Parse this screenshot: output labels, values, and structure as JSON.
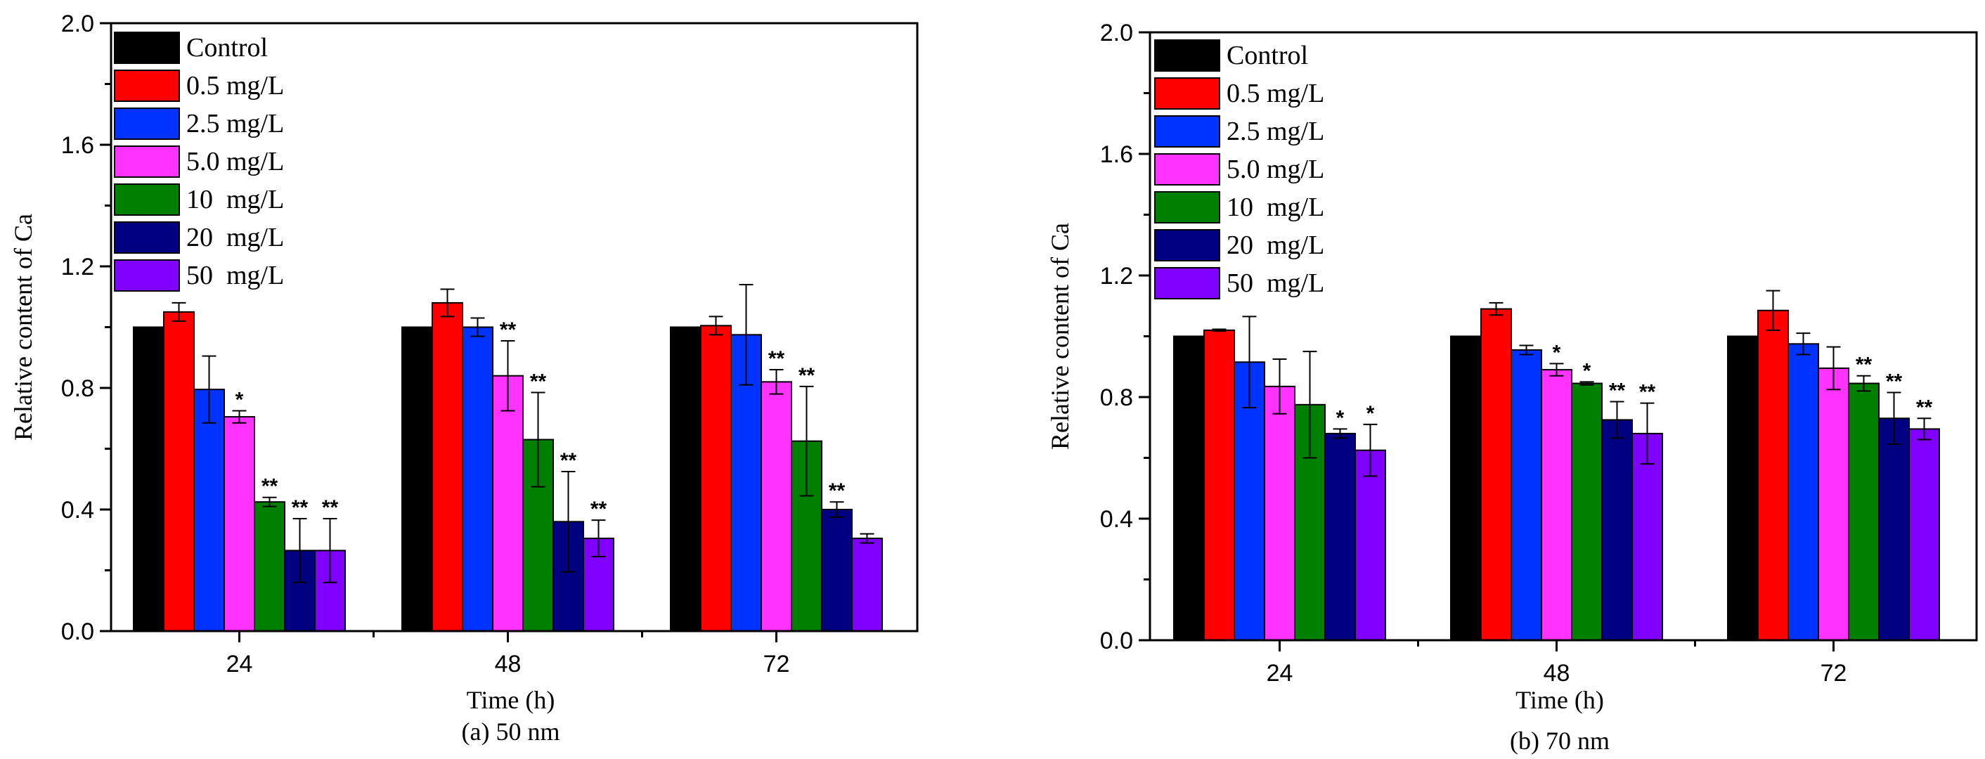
{
  "colors": [
    "#000000",
    "#ff0000",
    "#0033ff",
    "#ff33ff",
    "#008000",
    "#000080",
    "#8000ff"
  ],
  "chart_data": [
    {
      "type": "bar",
      "title": "",
      "caption": "(a) 50 nm",
      "xlabel": "Time (h)",
      "ylabel": "Relative content of Ca",
      "categories": [
        "24",
        "48",
        "72"
      ],
      "ylim": [
        0,
        2.0
      ],
      "yticks": [
        "0.0",
        "0.4",
        "0.8",
        "1.2",
        "1.6",
        "2.0"
      ],
      "legend_position": "top-left",
      "series": [
        {
          "name": "Control",
          "values": [
            1.0,
            1.0,
            1.0
          ],
          "errors": [
            0,
            0,
            0
          ],
          "sig": [
            "",
            "",
            ""
          ]
        },
        {
          "name": "0.5 mg/L",
          "values": [
            1.05,
            1.08,
            1.005
          ],
          "errors": [
            0.03,
            0.045,
            0.03
          ],
          "sig": [
            "",
            "",
            ""
          ]
        },
        {
          "name": "2.5 mg/L",
          "values": [
            0.795,
            1.0,
            0.975
          ],
          "errors": [
            0.11,
            0.03,
            0.165
          ],
          "sig": [
            "",
            "",
            ""
          ]
        },
        {
          "name": "5.0 mg/L",
          "values": [
            0.705,
            0.84,
            0.82
          ],
          "errors": [
            0.02,
            0.115,
            0.04
          ],
          "sig": [
            "*",
            "**",
            "**"
          ]
        },
        {
          "name": "10  mg/L",
          "values": [
            0.425,
            0.63,
            0.625
          ],
          "errors": [
            0.015,
            0.155,
            0.18
          ],
          "sig": [
            "**",
            "**",
            "**"
          ]
        },
        {
          "name": "20  mg/L",
          "values": [
            0.265,
            0.36,
            0.4
          ],
          "errors": [
            0.105,
            0.165,
            0.025
          ],
          "sig": [
            "**",
            "**",
            "**"
          ]
        },
        {
          "name": "50  mg/L",
          "values": [
            0.265,
            0.305,
            0.305
          ],
          "errors": [
            0.105,
            0.06,
            0.015
          ],
          "sig": [
            "**",
            "**",
            ""
          ]
        }
      ]
    },
    {
      "type": "bar",
      "title": "",
      "caption": "(b) 70 nm",
      "xlabel": "Time (h)",
      "ylabel": "Relative content of Ca",
      "categories": [
        "24",
        "48",
        "72"
      ],
      "ylim": [
        0,
        2.0
      ],
      "yticks": [
        "0.0",
        "0.4",
        "0.8",
        "1.2",
        "1.6",
        "2.0"
      ],
      "legend_position": "top-left",
      "series": [
        {
          "name": "Control",
          "values": [
            1.0,
            1.0,
            1.0
          ],
          "errors": [
            0,
            0,
            0
          ],
          "sig": [
            "",
            "",
            ""
          ]
        },
        {
          "name": "0.5 mg/L",
          "values": [
            1.02,
            1.09,
            1.085
          ],
          "errors": [
            0.003,
            0.02,
            0.065
          ],
          "sig": [
            "",
            "",
            ""
          ]
        },
        {
          "name": "2.5 mg/L",
          "values": [
            0.915,
            0.955,
            0.975
          ],
          "errors": [
            0.15,
            0.015,
            0.035
          ],
          "sig": [
            "",
            "",
            ""
          ]
        },
        {
          "name": "5.0 mg/L",
          "values": [
            0.835,
            0.89,
            0.895
          ],
          "errors": [
            0.09,
            0.02,
            0.07
          ],
          "sig": [
            "",
            "*",
            ""
          ]
        },
        {
          "name": "10  mg/L",
          "values": [
            0.775,
            0.845,
            0.845
          ],
          "errors": [
            0.175,
            0.005,
            0.025
          ],
          "sig": [
            "",
            "*",
            "**"
          ]
        },
        {
          "name": "20  mg/L",
          "values": [
            0.68,
            0.725,
            0.73
          ],
          "errors": [
            0.015,
            0.06,
            0.085
          ],
          "sig": [
            "*",
            "**",
            "**"
          ]
        },
        {
          "name": "50  mg/L",
          "values": [
            0.625,
            0.68,
            0.695
          ],
          "errors": [
            0.085,
            0.1,
            0.035
          ],
          "sig": [
            "*",
            "**",
            "**"
          ]
        }
      ]
    }
  ]
}
